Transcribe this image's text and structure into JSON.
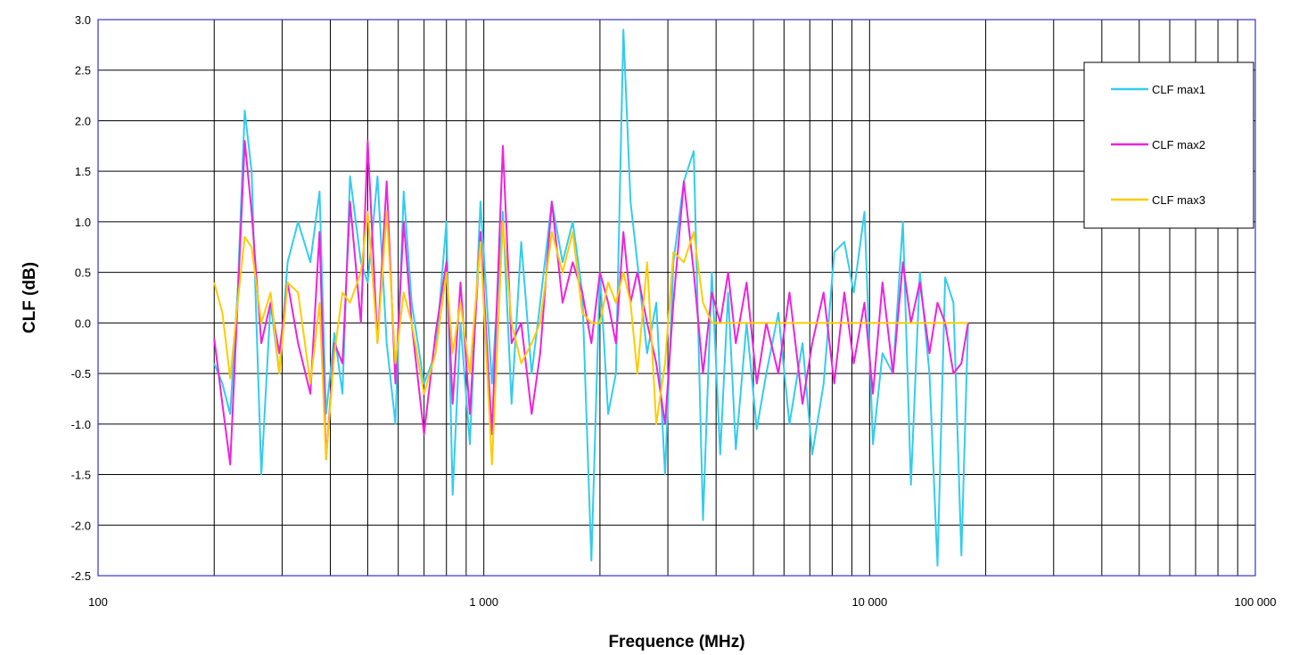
{
  "chart_data": {
    "type": "line",
    "title": "",
    "xlabel": "Frequence (MHz)",
    "ylabel": "CLF (dB)",
    "xscale": "log",
    "xlim": [
      100,
      100000
    ],
    "ylim": [
      -2.5,
      3.0
    ],
    "grid": true,
    "legend_position": "top-right",
    "x_ticks": [
      100,
      1000,
      10000,
      100000
    ],
    "x_tick_labels": [
      "100",
      "1 000",
      "10 000",
      "100 000"
    ],
    "y_ticks": [
      -2.5,
      -2.0,
      -1.5,
      -1.0,
      -0.5,
      0.0,
      0.5,
      1.0,
      1.5,
      2.0,
      2.5,
      3.0
    ],
    "y_tick_labels": [
      "-2.5",
      "-2.0",
      "-1.5",
      "-1.0",
      "-0.5",
      "0.0",
      "0.5",
      "1.0",
      "1.5",
      "2.0",
      "2.5",
      "3.0"
    ],
    "colors": {
      "plot_border": "#3333cc",
      "grid": "#000000",
      "CLF max1": "#33ccee",
      "CLF max2": "#ee22dd",
      "CLF max3": "#ffcc00"
    },
    "series": [
      {
        "name": "CLF max1",
        "color": "#33ccee",
        "points": [
          [
            200,
            -0.4
          ],
          [
            210,
            -0.6
          ],
          [
            220,
            -0.9
          ],
          [
            230,
            0.3
          ],
          [
            240,
            2.1
          ],
          [
            250,
            1.5
          ],
          [
            265,
            -1.5
          ],
          [
            280,
            0.2
          ],
          [
            295,
            -0.5
          ],
          [
            310,
            0.6
          ],
          [
            330,
            1.0
          ],
          [
            355,
            0.6
          ],
          [
            375,
            1.3
          ],
          [
            390,
            -0.9
          ],
          [
            410,
            -0.1
          ],
          [
            430,
            -0.7
          ],
          [
            450,
            1.45
          ],
          [
            480,
            0.6
          ],
          [
            500,
            0.4
          ],
          [
            530,
            1.45
          ],
          [
            560,
            -0.2
          ],
          [
            590,
            -1.0
          ],
          [
            620,
            1.3
          ],
          [
            650,
            0.2
          ],
          [
            700,
            -0.6
          ],
          [
            750,
            -0.3
          ],
          [
            800,
            1.0
          ],
          [
            830,
            -1.7
          ],
          [
            870,
            0.0
          ],
          [
            920,
            -1.2
          ],
          [
            980,
            1.2
          ],
          [
            1050,
            -0.6
          ],
          [
            1120,
            1.1
          ],
          [
            1180,
            -0.8
          ],
          [
            1250,
            0.8
          ],
          [
            1330,
            -0.5
          ],
          [
            1400,
            0.2
          ],
          [
            1500,
            1.2
          ],
          [
            1600,
            0.6
          ],
          [
            1700,
            1.0
          ],
          [
            1800,
            0.3
          ],
          [
            1900,
            -2.35
          ],
          [
            2000,
            0.5
          ],
          [
            2100,
            -0.9
          ],
          [
            2200,
            -0.5
          ],
          [
            2300,
            2.9
          ],
          [
            2400,
            1.2
          ],
          [
            2500,
            0.6
          ],
          [
            2650,
            -0.3
          ],
          [
            2800,
            0.2
          ],
          [
            2950,
            -1.5
          ],
          [
            3100,
            0.6
          ],
          [
            3300,
            1.4
          ],
          [
            3500,
            1.7
          ],
          [
            3700,
            -1.95
          ],
          [
            3900,
            0.5
          ],
          [
            4100,
            -1.3
          ],
          [
            4300,
            0.3
          ],
          [
            4500,
            -1.25
          ],
          [
            4800,
            0.0
          ],
          [
            5100,
            -1.05
          ],
          [
            5400,
            -0.5
          ],
          [
            5800,
            0.1
          ],
          [
            6200,
            -1.0
          ],
          [
            6700,
            -0.2
          ],
          [
            7100,
            -1.3
          ],
          [
            7600,
            -0.6
          ],
          [
            8100,
            0.7
          ],
          [
            8600,
            0.8
          ],
          [
            9100,
            0.3
          ],
          [
            9700,
            1.1
          ],
          [
            10200,
            -1.2
          ],
          [
            10800,
            -0.3
          ],
          [
            11500,
            -0.5
          ],
          [
            12200,
            1.0
          ],
          [
            12800,
            -1.6
          ],
          [
            13500,
            0.5
          ],
          [
            14300,
            -0.5
          ],
          [
            15000,
            -2.4
          ],
          [
            15700,
            0.45
          ],
          [
            16500,
            0.2
          ],
          [
            17300,
            -2.3
          ],
          [
            18000,
            0.0
          ]
        ]
      },
      {
        "name": "CLF max2",
        "color": "#ee22dd",
        "points": [
          [
            200,
            -0.15
          ],
          [
            210,
            -0.8
          ],
          [
            220,
            -1.4
          ],
          [
            230,
            0.2
          ],
          [
            240,
            1.8
          ],
          [
            250,
            1.1
          ],
          [
            265,
            -0.2
          ],
          [
            280,
            0.2
          ],
          [
            295,
            -0.3
          ],
          [
            310,
            0.4
          ],
          [
            330,
            -0.2
          ],
          [
            355,
            -0.7
          ],
          [
            375,
            0.9
          ],
          [
            390,
            -1.35
          ],
          [
            410,
            -0.2
          ],
          [
            430,
            -0.4
          ],
          [
            450,
            1.2
          ],
          [
            480,
            0.0
          ],
          [
            500,
            1.8
          ],
          [
            530,
            -0.2
          ],
          [
            560,
            1.4
          ],
          [
            590,
            -0.6
          ],
          [
            620,
            1.0
          ],
          [
            650,
            0.0
          ],
          [
            700,
            -1.1
          ],
          [
            750,
            -0.1
          ],
          [
            800,
            0.6
          ],
          [
            830,
            -0.8
          ],
          [
            870,
            0.4
          ],
          [
            920,
            -0.9
          ],
          [
            980,
            0.9
          ],
          [
            1050,
            -1.1
          ],
          [
            1120,
            1.75
          ],
          [
            1180,
            -0.2
          ],
          [
            1250,
            0.0
          ],
          [
            1330,
            -0.9
          ],
          [
            1400,
            -0.3
          ],
          [
            1500,
            1.2
          ],
          [
            1600,
            0.2
          ],
          [
            1700,
            0.6
          ],
          [
            1800,
            0.3
          ],
          [
            1900,
            -0.2
          ],
          [
            2000,
            0.5
          ],
          [
            2100,
            0.2
          ],
          [
            2200,
            -0.2
          ],
          [
            2300,
            0.9
          ],
          [
            2400,
            0.2
          ],
          [
            2500,
            0.5
          ],
          [
            2650,
            0.0
          ],
          [
            2800,
            -0.4
          ],
          [
            2950,
            -1.0
          ],
          [
            3100,
            0.2
          ],
          [
            3300,
            1.4
          ],
          [
            3500,
            0.5
          ],
          [
            3700,
            -0.5
          ],
          [
            3900,
            0.3
          ],
          [
            4100,
            0.0
          ],
          [
            4300,
            0.5
          ],
          [
            4500,
            -0.2
          ],
          [
            4800,
            0.4
          ],
          [
            5100,
            -0.6
          ],
          [
            5400,
            0.0
          ],
          [
            5800,
            -0.5
          ],
          [
            6200,
            0.3
          ],
          [
            6700,
            -0.8
          ],
          [
            7100,
            -0.2
          ],
          [
            7600,
            0.3
          ],
          [
            8100,
            -0.6
          ],
          [
            8600,
            0.3
          ],
          [
            9100,
            -0.4
          ],
          [
            9700,
            0.2
          ],
          [
            10200,
            -0.7
          ],
          [
            10800,
            0.4
          ],
          [
            11500,
            -0.5
          ],
          [
            12200,
            0.6
          ],
          [
            12800,
            0.0
          ],
          [
            13500,
            0.4
          ],
          [
            14300,
            -0.3
          ],
          [
            15000,
            0.2
          ],
          [
            15700,
            0.0
          ],
          [
            16500,
            -0.5
          ],
          [
            17300,
            -0.4
          ],
          [
            18000,
            0.0
          ]
        ]
      },
      {
        "name": "CLF max3",
        "color": "#ffcc00",
        "points": [
          [
            200,
            0.4
          ],
          [
            210,
            0.1
          ],
          [
            220,
            -0.55
          ],
          [
            230,
            0.2
          ],
          [
            240,
            0.85
          ],
          [
            250,
            0.75
          ],
          [
            265,
            0.0
          ],
          [
            280,
            0.3
          ],
          [
            295,
            -0.5
          ],
          [
            310,
            0.4
          ],
          [
            330,
            0.3
          ],
          [
            355,
            -0.6
          ],
          [
            375,
            0.2
          ],
          [
            390,
            -1.35
          ],
          [
            410,
            -0.3
          ],
          [
            430,
            0.3
          ],
          [
            450,
            0.2
          ],
          [
            480,
            0.5
          ],
          [
            500,
            1.1
          ],
          [
            530,
            -0.2
          ],
          [
            560,
            1.1
          ],
          [
            590,
            -0.4
          ],
          [
            620,
            0.3
          ],
          [
            650,
            0.0
          ],
          [
            700,
            -0.7
          ],
          [
            750,
            -0.3
          ],
          [
            800,
            0.5
          ],
          [
            830,
            -0.3
          ],
          [
            870,
            0.2
          ],
          [
            920,
            -0.5
          ],
          [
            980,
            0.8
          ],
          [
            1050,
            -1.4
          ],
          [
            1120,
            1.0
          ],
          [
            1180,
            0.0
          ],
          [
            1250,
            -0.4
          ],
          [
            1330,
            -0.2
          ],
          [
            1400,
            0.0
          ],
          [
            1500,
            0.9
          ],
          [
            1600,
            0.5
          ],
          [
            1700,
            0.9
          ],
          [
            1800,
            0.1
          ],
          [
            1900,
            0.0
          ],
          [
            2000,
            0.0
          ],
          [
            2100,
            0.4
          ],
          [
            2200,
            0.2
          ],
          [
            2300,
            0.5
          ],
          [
            2400,
            0.2
          ],
          [
            2500,
            -0.5
          ],
          [
            2650,
            0.6
          ],
          [
            2800,
            -1.0
          ],
          [
            2950,
            -0.4
          ],
          [
            3100,
            0.7
          ],
          [
            3300,
            0.6
          ],
          [
            3500,
            0.9
          ],
          [
            3700,
            0.2
          ],
          [
            3900,
            0.0
          ],
          [
            5000,
            0.0
          ],
          [
            7000,
            0.0
          ],
          [
            10000,
            0.0
          ],
          [
            14000,
            0.0
          ],
          [
            18000,
            0.0
          ]
        ]
      }
    ]
  }
}
